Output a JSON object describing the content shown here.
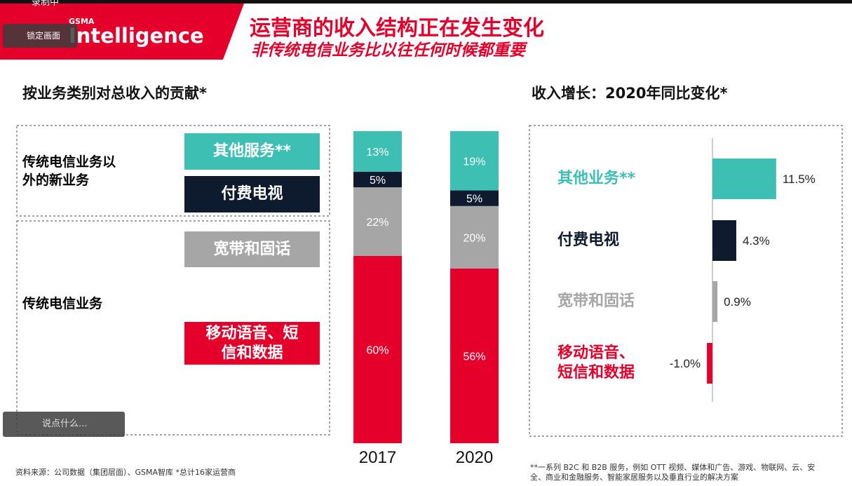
{
  "overlay": {
    "recording": "录制中",
    "lock_screen": "锁定画面",
    "comment_input": "说点什么..."
  },
  "header": {
    "logo_small": "GSMA",
    "logo": "Intelligence",
    "title": "运营商的收入结构正在发生变化",
    "subtitle": "非传统电信业务比以往任何时候都重要"
  },
  "groups": [
    "传统电信业务以外的新业务",
    "传统电信业务"
  ],
  "chart_data": [
    {
      "type": "stacked_bar",
      "title": "按业务类别对总收入的贡献*",
      "categories": [
        "2017",
        "2020"
      ],
      "series": [
        {
          "name": "移动语音、短信和数据",
          "color": "#e4002b",
          "values": [
            60,
            56
          ],
          "value_labels": [
            "60%",
            "56%"
          ]
        },
        {
          "name": "宽带和固话",
          "color": "#a6a6a6",
          "values": [
            22,
            20
          ],
          "value_labels": [
            "22%",
            "20%"
          ]
        },
        {
          "name": "付费电视",
          "color": "#0e1b2f",
          "values": [
            5,
            5
          ],
          "value_labels": [
            "5%",
            "5%"
          ]
        },
        {
          "name": "其他服务**",
          "color": "#3dbfb4",
          "values": [
            13,
            19
          ],
          "value_labels": [
            "13%",
            "19%"
          ]
        }
      ]
    },
    {
      "type": "hbar",
      "title": "收入增长：2020年同比变化*",
      "categories": [
        "其他业务**",
        "付费电视",
        "宽带和固话",
        "移动语音、短信和数据"
      ],
      "values": [
        11.5,
        4.3,
        0.9,
        -1.0
      ],
      "value_labels": [
        "11.5%",
        "4.3%",
        "0.9%",
        "-1.0%"
      ],
      "colors": [
        "#3dbfb4",
        "#0e1b2f",
        "#a6a6a6",
        "#e4002b"
      ]
    }
  ],
  "footer": {
    "source": "资料来源：公司数据（集团层面）、GSMA智库 *总计16家运营商",
    "note": "**一系列 B2C 和 B2B 服务，例如 OTT 视频、媒体和广告、游戏、物联网、云、安全、商业和金融服务、智能家居服务以及垂直行业的解决方案"
  }
}
